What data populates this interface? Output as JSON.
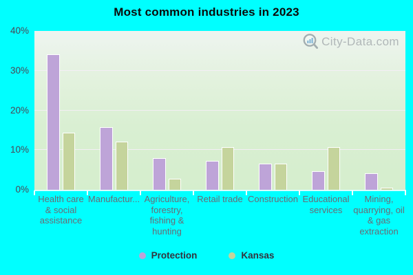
{
  "title": "Most common industries in 2023",
  "watermark": {
    "text": "City-Data.com"
  },
  "colors": {
    "background": "#00ffff",
    "plot_top": "#eef4f0",
    "plot_bottom": "#d5eecd",
    "bar_border": "#ffffff",
    "gridline": "#f5eef7",
    "y_label": "#4b4655",
    "x_label": "#6a6a74",
    "legend_text": "#33333d",
    "title_text": "#0a0a0a",
    "watermark_text": "#a6adaf",
    "watermark_logo_ring": "#97a2a6",
    "watermark_logo_bars": "#85b8d8"
  },
  "chart_data": {
    "type": "bar",
    "title": "Most common industries in 2023",
    "categories": [
      "Health care & social assistance",
      "Manufactur...",
      "Agriculture, forestry, fishing & hunting",
      "Retail trade",
      "Construction",
      "Educational services",
      "Mining, quarrying, oil & gas extraction"
    ],
    "series": [
      {
        "name": "Protection",
        "color": "#bea4d8",
        "values": [
          34.2,
          15.8,
          8.0,
          7.2,
          6.5,
          4.6,
          4.2
        ]
      },
      {
        "name": "Kansas",
        "color": "#c5d49c",
        "values": [
          14.3,
          12.2,
          2.8,
          10.7,
          6.6,
          10.7,
          0.5
        ]
      }
    ],
    "unit": "%",
    "ylim": [
      0,
      40
    ],
    "y_ticks": [
      "0%",
      "10%",
      "20%",
      "30%",
      "40%"
    ],
    "grid_pcts": [
      10,
      20,
      30
    ],
    "grid": true,
    "legend_position": "bottom"
  }
}
